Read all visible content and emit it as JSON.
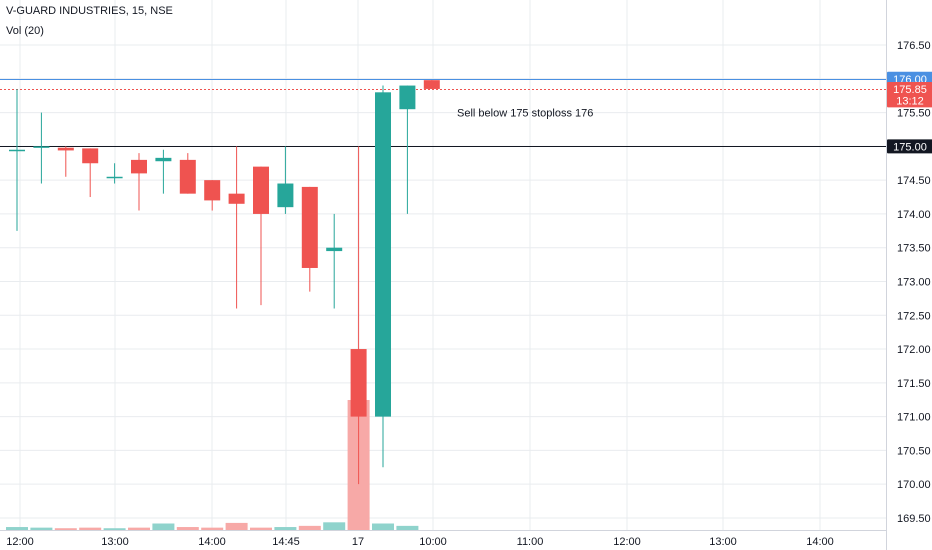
{
  "header": {
    "symbol_line": "V-GUARD INDUSTRIES, 15, NSE",
    "volume_label": "Vol (20)"
  },
  "colors": {
    "up": "#26a69a",
    "down": "#ef5350",
    "vol_up": "#8fd3cc",
    "vol_down": "#f7a9a7",
    "blue_line": "#4a90e2",
    "red_dotted": "#ef5350",
    "black_line": "#131722",
    "grid": "#e9ecef"
  },
  "price_badges": [
    {
      "text": "176.00",
      "price": 176.0,
      "color": "#4a90e2"
    },
    {
      "text": "175.85",
      "price": 175.85,
      "color": "#ef5350"
    },
    {
      "text": "13:12",
      "price": 175.68,
      "color": "#ef5350"
    },
    {
      "text": "175.00",
      "price": 175.0,
      "color": "#131722"
    }
  ],
  "annotation": {
    "text": "Sell below 175 stoploss 176",
    "price": 175.5
  },
  "chart_data": {
    "type": "candlestick",
    "y_range": [
      169.44,
      176.9
    ],
    "y_ticks": [
      169.5,
      170.0,
      170.5,
      171.0,
      171.5,
      172.0,
      172.5,
      173.0,
      173.5,
      174.0,
      174.5,
      175.0,
      175.5,
      176.0,
      176.5
    ],
    "x_ticks": [
      "12:00",
      "13:00",
      "14:00",
      "14:45",
      "17",
      "10:00",
      "11:00",
      "12:00",
      "13:00",
      "14:00"
    ],
    "horizontal_lines": [
      {
        "price": 176.0,
        "style": "solid",
        "color": "#4a90e2"
      },
      {
        "price": 175.85,
        "style": "dotted",
        "color": "#ef5350"
      },
      {
        "price": 175.0,
        "style": "solid",
        "color": "#131722"
      }
    ],
    "candles": [
      {
        "open": 174.95,
        "high": 175.85,
        "low": 173.75,
        "close": 174.95
      },
      {
        "open": 175.0,
        "high": 175.5,
        "low": 174.45,
        "close": 175.0
      },
      {
        "open": 174.98,
        "high": 175.0,
        "low": 174.55,
        "close": 174.94
      },
      {
        "open": 174.97,
        "high": 174.97,
        "low": 174.25,
        "close": 174.75
      },
      {
        "open": 174.55,
        "high": 174.75,
        "low": 174.45,
        "close": 174.55
      },
      {
        "open": 174.8,
        "high": 174.9,
        "low": 174.05,
        "close": 174.6
      },
      {
        "open": 174.78,
        "high": 174.95,
        "low": 174.3,
        "close": 174.83
      },
      {
        "open": 174.8,
        "high": 174.9,
        "low": 174.3,
        "close": 174.3
      },
      {
        "open": 174.5,
        "high": 174.5,
        "low": 174.05,
        "close": 174.2
      },
      {
        "open": 174.3,
        "high": 175.0,
        "low": 172.6,
        "close": 174.15
      },
      {
        "open": 174.7,
        "high": 174.7,
        "low": 172.65,
        "close": 174.0
      },
      {
        "open": 174.1,
        "high": 175.0,
        "low": 174.0,
        "close": 174.45
      },
      {
        "open": 174.4,
        "high": 174.4,
        "low": 172.85,
        "close": 173.2
      },
      {
        "open": 173.45,
        "high": 174.0,
        "low": 172.6,
        "close": 173.5
      },
      {
        "open": 172.0,
        "high": 175.0,
        "low": 170.0,
        "close": 171.0
      },
      {
        "open": 171.0,
        "high": 175.9,
        "low": 170.25,
        "close": 175.8
      },
      {
        "open": 175.55,
        "high": 175.9,
        "low": 174.0,
        "close": 175.9
      },
      {
        "open": 175.98,
        "high": 175.98,
        "low": 175.85,
        "close": 175.85
      }
    ],
    "volume": [
      0.25,
      0.2,
      0.15,
      0.2,
      0.15,
      0.2,
      0.55,
      0.25,
      0.2,
      0.6,
      0.2,
      0.25,
      0.35,
      0.65,
      11.0,
      0.55,
      0.35,
      0.0
    ],
    "volume_max": 11.0
  }
}
